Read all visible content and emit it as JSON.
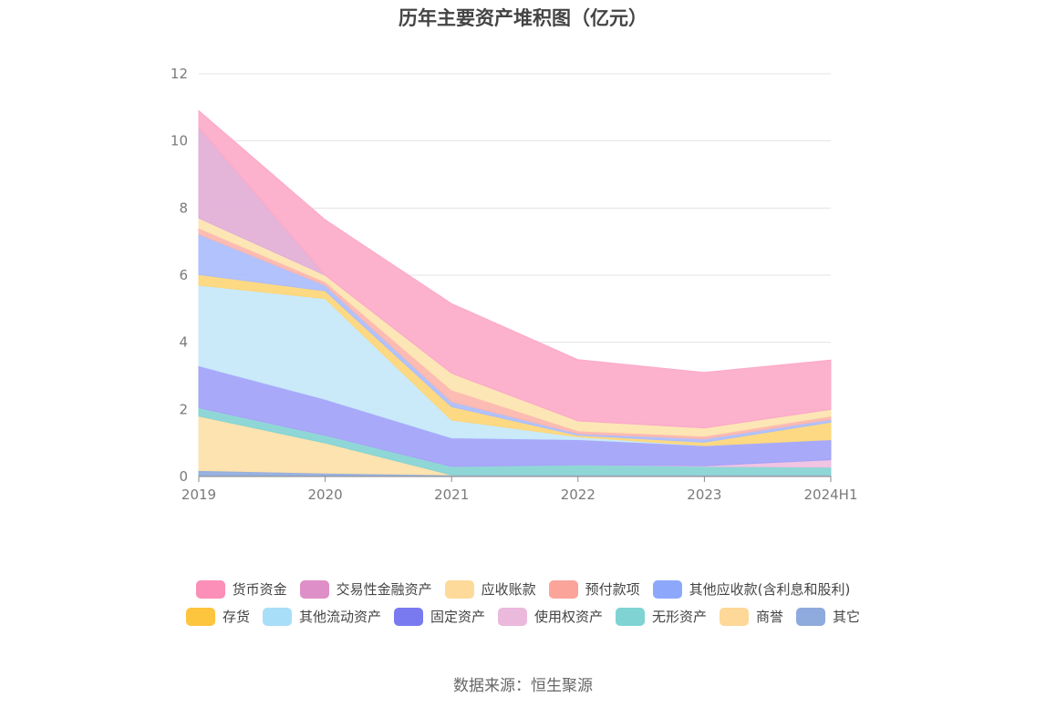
{
  "chart_data": {
    "type": "area",
    "stacked": true,
    "title": "历年主要资产堆积图（亿元）",
    "categories": [
      "2019",
      "2020",
      "2021",
      "2022",
      "2023",
      "2024H1"
    ],
    "ylim": [
      0,
      12
    ],
    "yticks": [
      0,
      2,
      4,
      6,
      8,
      10,
      12
    ],
    "grid": true,
    "legend_position": "bottom",
    "series": [
      {
        "name": "其它",
        "color": "#8faadc",
        "values": [
          0.18,
          0.1,
          0.05,
          0.05,
          0.05,
          0.05
        ]
      },
      {
        "name": "商誉",
        "color": "#fde1a9",
        "values": [
          1.62,
          0.9,
          0.0,
          0.0,
          0.0,
          0.0
        ]
      },
      {
        "name": "无形资产",
        "color": "#85d4d4",
        "values": [
          0.25,
          0.23,
          0.25,
          0.3,
          0.25,
          0.23
        ]
      },
      {
        "name": "使用权资产",
        "color": "#f0bfe2",
        "values": [
          0.0,
          0.0,
          0.0,
          0.0,
          0.02,
          0.22
        ]
      },
      {
        "name": "固定资产",
        "color": "#a2a2f8",
        "values": [
          1.25,
          1.07,
          0.85,
          0.75,
          0.6,
          0.6
        ]
      },
      {
        "name": "其他流动资产",
        "color": "#c5e8fa",
        "values": [
          2.4,
          3.0,
          0.53,
          0.08,
          0.0,
          0.0
        ]
      },
      {
        "name": "存货",
        "color": "#fdd67a",
        "values": [
          0.32,
          0.23,
          0.4,
          0.05,
          0.1,
          0.52
        ]
      },
      {
        "name": "其他应收款(含利息和股利)",
        "color": "#abbdfc",
        "values": [
          1.2,
          0.17,
          0.15,
          0.05,
          0.1,
          0.08
        ]
      },
      {
        "name": "预付款项",
        "color": "#fcb5ad",
        "values": [
          0.18,
          0.1,
          0.35,
          0.08,
          0.08,
          0.1
        ]
      },
      {
        "name": "应收账款",
        "color": "#fde4b0",
        "values": [
          0.3,
          0.2,
          0.5,
          0.3,
          0.25,
          0.2
        ]
      },
      {
        "name": "交易性金融资产",
        "color": "#e2aed6",
        "values": [
          2.7,
          0.0,
          0.0,
          0.0,
          0.0,
          0.0
        ]
      },
      {
        "name": "货币资金",
        "color": "#fcaac8",
        "values": [
          0.5,
          1.65,
          2.07,
          1.82,
          1.65,
          1.47
        ]
      }
    ]
  },
  "legend": {
    "row1": [
      {
        "label": "货币资金",
        "color": "#fb8fb7"
      },
      {
        "label": "交易性金融资产",
        "color": "#de8fc7"
      },
      {
        "label": "应收账款",
        "color": "#fdd99a"
      },
      {
        "label": "预付款项",
        "color": "#fba49a"
      },
      {
        "label": "其他应收款(含利息和股利)",
        "color": "#8da8fb"
      }
    ],
    "row2": [
      {
        "label": "存货",
        "color": "#fdc43d"
      },
      {
        "label": "其他流动资产",
        "color": "#a9def8"
      },
      {
        "label": "固定资产",
        "color": "#7a7af0"
      },
      {
        "label": "使用权资产",
        "color": "#ebb9dc"
      },
      {
        "label": "无形资产",
        "color": "#7fd3d3"
      },
      {
        "label": "商誉",
        "color": "#fdd898"
      },
      {
        "label": "其它",
        "color": "#8faadc"
      }
    ]
  },
  "source": "数据来源：恒生聚源"
}
